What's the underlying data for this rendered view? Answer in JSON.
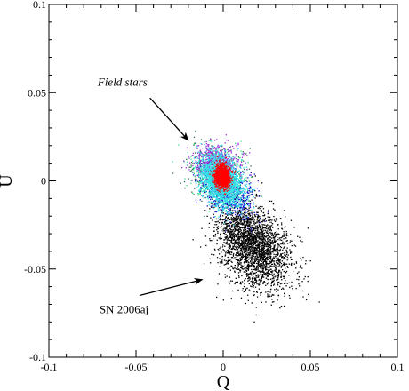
{
  "chart_data": {
    "type": "scatter",
    "title": "",
    "xlabel": "Q",
    "ylabel": "U",
    "xlim": [
      -0.1,
      0.1
    ],
    "ylim": [
      -0.1,
      0.1
    ],
    "xticks": [
      -0.1,
      -0.05,
      0,
      0.05,
      0.1
    ],
    "yticks": [
      -0.1,
      -0.05,
      0,
      0.05,
      0.1
    ],
    "xtick_labels": [
      "-0.1",
      "-0.05",
      "0",
      "0.05",
      "0.1"
    ],
    "ytick_labels": [
      "-0.1",
      "-0.05",
      "0",
      "0.05",
      "0.1"
    ],
    "grid": false,
    "legend": "none",
    "annotations": [
      {
        "text": "Field stars",
        "style": "italic",
        "tx": -0.072,
        "ty": 0.054,
        "arrow_from": [
          -0.042,
          0.047
        ],
        "arrow_to": [
          -0.02,
          0.023
        ]
      },
      {
        "text": "SN 2006aj",
        "style": "normal",
        "tx": -0.071,
        "ty": -0.075,
        "arrow_from": [
          -0.048,
          -0.065
        ],
        "arrow_to": [
          -0.012,
          -0.056
        ]
      }
    ],
    "series": [
      {
        "color": "#000000",
        "count": 2600,
        "center": [
          0.017,
          -0.037
        ],
        "sigma": [
          0.0105,
          0.0125
        ],
        "rho": -0.35
      },
      {
        "color": "#2f6f4f",
        "count": 350,
        "center": [
          -0.004,
          0.005
        ],
        "sigma": [
          0.0085,
          0.0085
        ],
        "rho": -0.25
      },
      {
        "color": "#32e082",
        "count": 300,
        "center": [
          -0.003,
          0.003
        ],
        "sigma": [
          0.009,
          0.008
        ],
        "rho": -0.2
      },
      {
        "color": "#9b30d9",
        "count": 700,
        "center": [
          -0.004,
          0.01
        ],
        "sigma": [
          0.0065,
          0.0055
        ],
        "rho": -0.1
      },
      {
        "color": "#1a1ad6",
        "count": 800,
        "center": [
          0.002,
          -0.006
        ],
        "sigma": [
          0.0072,
          0.0072
        ],
        "rho": -0.45
      },
      {
        "color": "#35e2e8",
        "count": 2400,
        "center": [
          -0.001,
          0.0
        ],
        "sigma": [
          0.0058,
          0.0072
        ],
        "rho": -0.35
      },
      {
        "color": "#ff0000",
        "count": 1400,
        "center": [
          -0.0005,
          0.0025
        ],
        "sigma": [
          0.0022,
          0.0032
        ],
        "rho": -0.1
      }
    ]
  }
}
